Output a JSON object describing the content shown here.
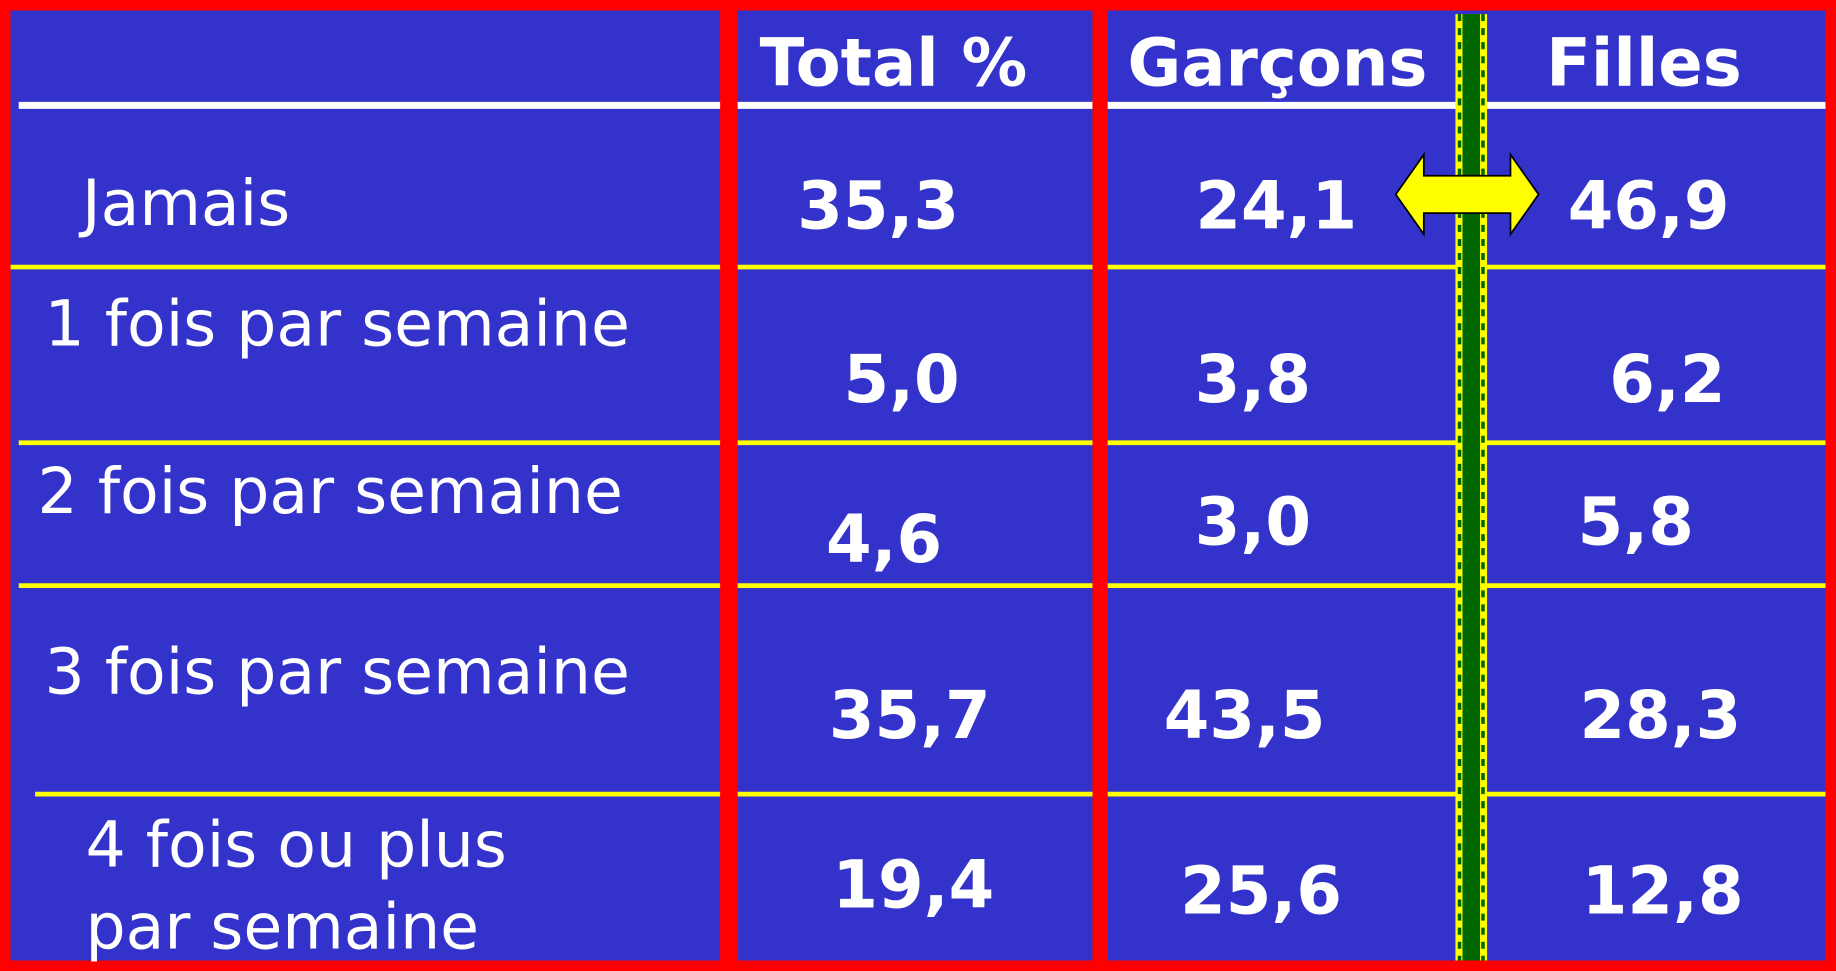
{
  "header": {
    "columns": [
      "Total %",
      "Garçons",
      "Filles"
    ]
  },
  "table": {
    "rows": [
      {
        "label": [
          "Jamais"
        ],
        "values": [
          "35,3",
          "24,1",
          "46,9"
        ]
      },
      {
        "label": [
          "1 fois par semaine"
        ],
        "values": [
          "5,0",
          "3,8",
          "6,2"
        ]
      },
      {
        "label": [
          "2 fois par semaine"
        ],
        "values": [
          "4,6",
          "3,0",
          "5,8"
        ]
      },
      {
        "label": [
          "3 fois par semaine"
        ],
        "values": [
          "35,7",
          "43,5",
          "28,3"
        ]
      },
      {
        "label": [
          "4 fois ou plus",
          "par semaine"
        ],
        "values": [
          "19,4",
          "25,6",
          "12,8"
        ]
      }
    ]
  }
}
